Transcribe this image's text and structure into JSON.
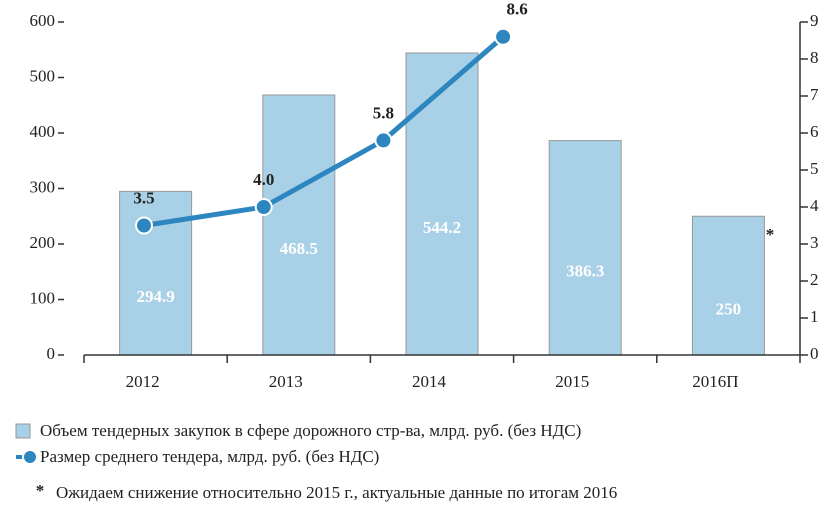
{
  "chart_data": {
    "type": "bar_line",
    "categories": [
      "2012",
      "2013",
      "2014",
      "2015",
      "2016П"
    ],
    "series": [
      {
        "name": "Объем тендерных закупок в сфере дорожного стр-ва, млрд. руб. (без НДС)",
        "type": "bar",
        "color": "#a8d0e6",
        "values": [
          294.9,
          468.5,
          544.2,
          386.3,
          250
        ],
        "value_labels": [
          "294.9",
          "468.5",
          "544.2",
          "386.3",
          "250"
        ]
      },
      {
        "name": "Размер среднего тендера, млрд. руб. (без НДС)",
        "type": "line",
        "axis": "y2",
        "color": "#2e86c1",
        "values": [
          3.5,
          4.0,
          5.8,
          8.6,
          null
        ],
        "value_labels": [
          "3.5",
          "4.0",
          "5.8",
          "8.6",
          null
        ]
      }
    ],
    "ylim": [
      0,
      600
    ],
    "yticks": [
      0,
      100,
      200,
      300,
      400,
      500,
      600
    ],
    "y2lim": [
      0,
      9
    ],
    "y2ticks": [
      0,
      1,
      2,
      3,
      4,
      5,
      6,
      7,
      8,
      9
    ],
    "annotation": "*",
    "footnote_mark": "*",
    "footnote": "Ожидаем снижение относительно 2015 г., актуальные данные по итогам 2016"
  }
}
